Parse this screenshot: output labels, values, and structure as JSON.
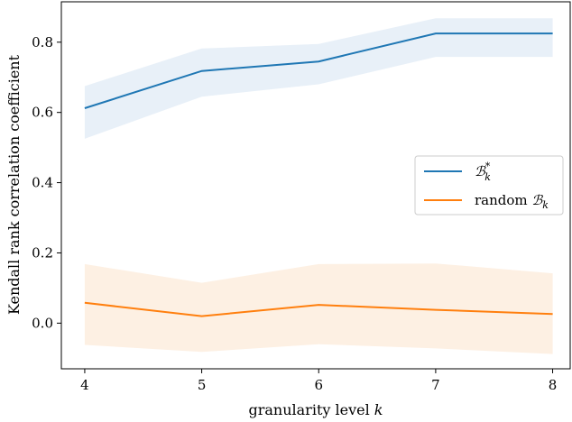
{
  "chart_data": {
    "type": "line",
    "xlabel": "granularity level k",
    "ylabel": "Kendall rank correlation coefficient",
    "x": [
      4,
      5,
      6,
      7,
      8
    ],
    "xticks": [
      "4",
      "5",
      "6",
      "7",
      "8"
    ],
    "yticks": [
      "0.0",
      "0.2",
      "0.4",
      "0.6",
      "0.8"
    ],
    "ytick_values": [
      0.0,
      0.2,
      0.4,
      0.6,
      0.8
    ],
    "xlim": [
      3.8,
      8.15
    ],
    "ylim": [
      -0.13,
      0.915
    ],
    "grid": false,
    "legend_position": "center-right",
    "series": [
      {
        "name": "B*k",
        "color": "#1f77b4",
        "band_color": "#e8f0f8",
        "values": [
          0.612,
          0.718,
          0.745,
          0.825,
          0.825
        ],
        "lower": [
          0.525,
          0.645,
          0.68,
          0.758,
          0.758
        ],
        "upper": [
          0.675,
          0.782,
          0.795,
          0.868,
          0.868
        ]
      },
      {
        "name": "random Bk",
        "color": "#ff7f0e",
        "band_color": "#fdf0e3",
        "values": [
          0.058,
          0.02,
          0.052,
          0.038,
          0.026
        ],
        "lower": [
          -0.062,
          -0.082,
          -0.06,
          -0.072,
          -0.088
        ],
        "upper": [
          0.168,
          0.115,
          0.168,
          0.17,
          0.142
        ]
      }
    ]
  }
}
